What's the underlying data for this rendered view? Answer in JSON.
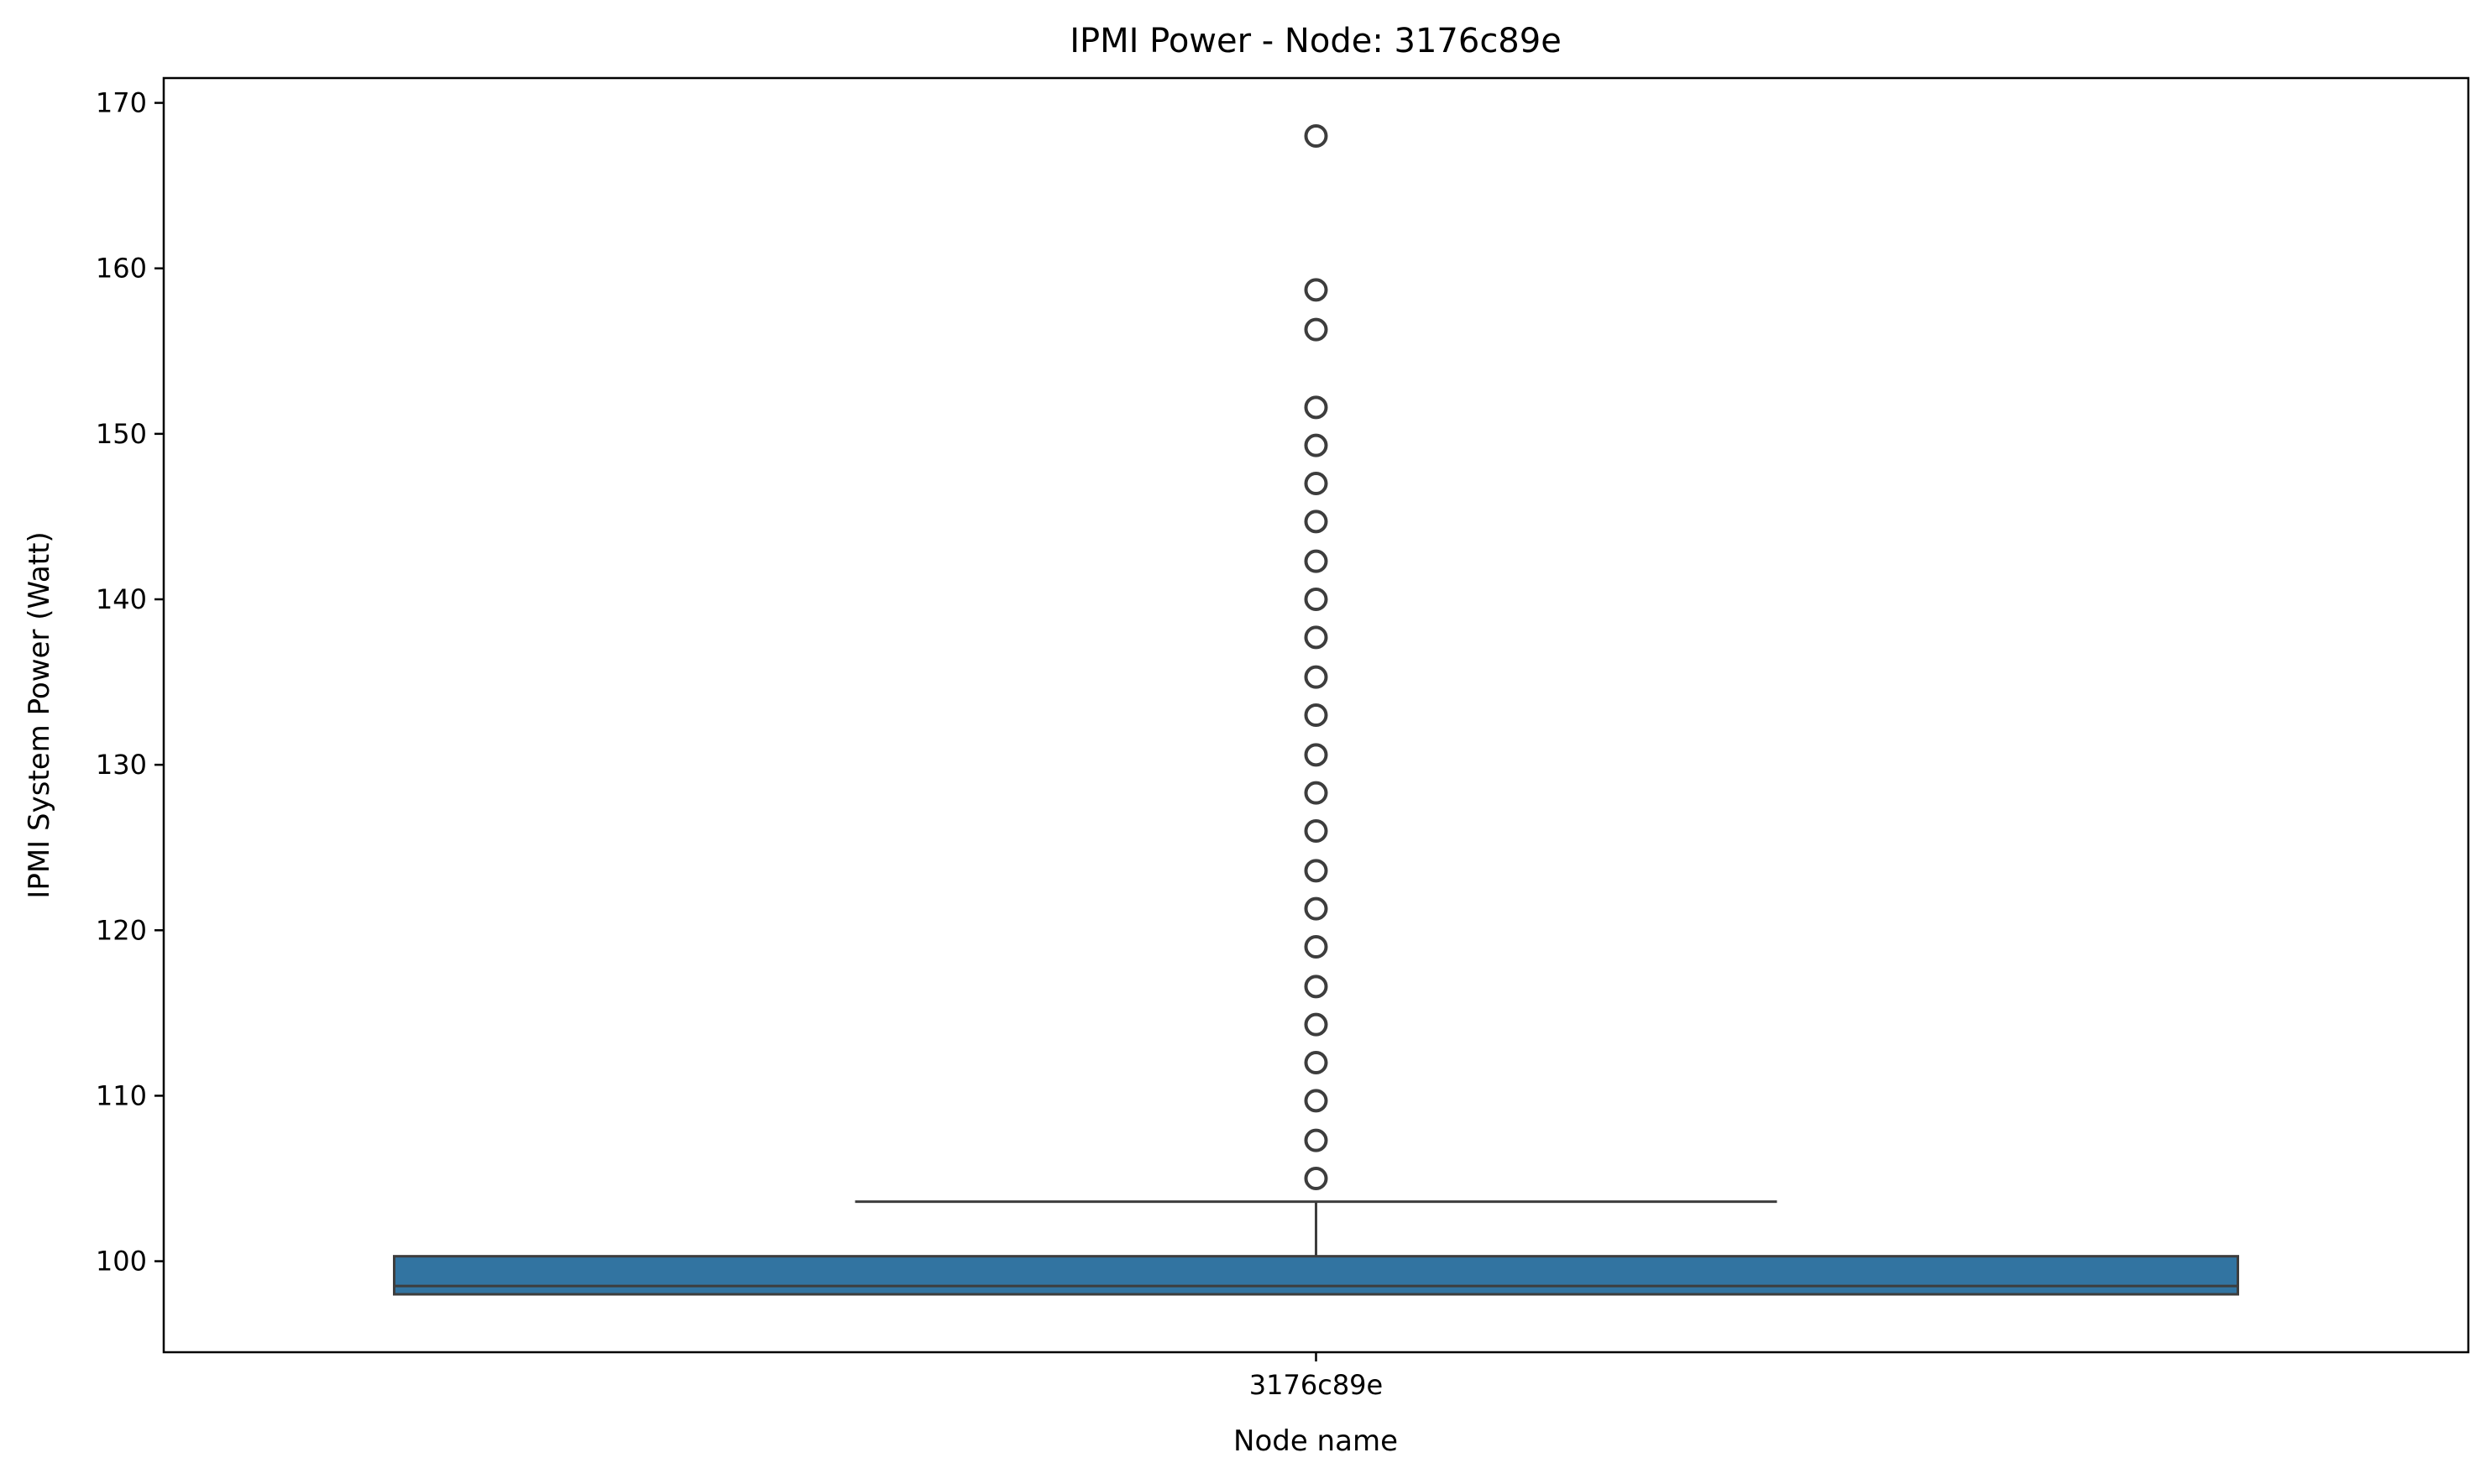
{
  "chart_data": {
    "type": "box",
    "title": "IPMI Power - Node: 3176c89e",
    "xlabel": "Node name",
    "ylabel": "IPMI System Power (Watt)",
    "categories": [
      "3176c89e"
    ],
    "ylim": [
      94.5,
      171.5
    ],
    "yticks": [
      100,
      110,
      120,
      130,
      140,
      150,
      160,
      170
    ],
    "grid": false,
    "legend": "none",
    "box_color": "#3274a1",
    "line_color": "#3d3d3d",
    "boxes": [
      {
        "category": "3176c89e",
        "q1": 98.0,
        "median": 98.5,
        "q3": 100.3,
        "whisker_low": 98.0,
        "whisker_high": 103.6,
        "outliers": [
          105.0,
          107.3,
          109.7,
          112.0,
          114.3,
          116.6,
          119.0,
          121.3,
          123.6,
          126.0,
          128.3,
          130.6,
          133.0,
          135.3,
          137.7,
          140.0,
          142.3,
          144.7,
          147.0,
          149.3,
          151.6,
          156.3,
          158.7,
          168.0
        ]
      }
    ]
  }
}
